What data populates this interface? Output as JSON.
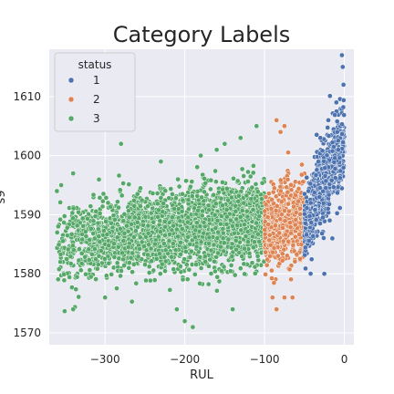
{
  "chart_data": {
    "type": "scatter",
    "title": "Category Labels",
    "xlabel": "RUL",
    "ylabel": "s9",
    "xlim": [
      -370,
      12
    ],
    "ylim": [
      1568,
      1618
    ],
    "xticks": [
      -300,
      -200,
      -100,
      0
    ],
    "xtick_labels": [
      "−300",
      "−200",
      "−100",
      "0"
    ],
    "yticks": [
      1570,
      1580,
      1590,
      1600,
      1610
    ],
    "ytick_labels": [
      "1570",
      "1580",
      "1590",
      "1600",
      "1610"
    ],
    "grid": true,
    "legend": {
      "title": "status",
      "placement": "top-left",
      "entries": [
        "1",
        "2",
        "3"
      ]
    },
    "series": [
      {
        "name": "1",
        "color": "#4c72b0",
        "x_range": [
          -50,
          0
        ],
        "y_trend": [
          1588,
          1603
        ],
        "y_spread": 6,
        "points": 800,
        "sample_points": [
          [
            -3,
            1617
          ],
          [
            -2,
            1615
          ],
          [
            -1,
            1612
          ],
          [
            -10,
            1609
          ],
          [
            -20,
            1606
          ],
          [
            -30,
            1603
          ],
          [
            -45,
            1594
          ],
          [
            -25,
            1580
          ],
          [
            -15,
            1586
          ]
        ]
      },
      {
        "name": "2",
        "color": "#dd8452",
        "x_range": [
          -100,
          -50
        ],
        "y_trend": [
          1587,
          1590
        ],
        "y_spread": 6,
        "points": 600,
        "sample_points": [
          [
            -85,
            1606
          ],
          [
            -80,
            1604
          ],
          [
            -75,
            1605
          ],
          [
            -90,
            1576
          ],
          [
            -75,
            1576
          ],
          [
            -85,
            1574
          ],
          [
            -65,
            1576
          ]
        ]
      },
      {
        "name": "3",
        "color": "#55a868",
        "x_range": [
          -362,
          -100
        ],
        "y_trend": [
          1585,
          1589
        ],
        "y_spread": 6,
        "points": 2600,
        "sample_points": [
          [
            -355,
            1595
          ],
          [
            -340,
            1597
          ],
          [
            -360,
            1587
          ],
          [
            -340,
            1574
          ],
          [
            -280,
            1602
          ],
          [
            -300,
            1576
          ],
          [
            -200,
            1572
          ],
          [
            -190,
            1571
          ],
          [
            -210,
            1574
          ],
          [
            -140,
            1574
          ],
          [
            -110,
            1605
          ],
          [
            -130,
            1603
          ],
          [
            -150,
            1602
          ],
          [
            -160,
            1601
          ],
          [
            -180,
            1600
          ],
          [
            -230,
            1599
          ]
        ]
      }
    ]
  }
}
